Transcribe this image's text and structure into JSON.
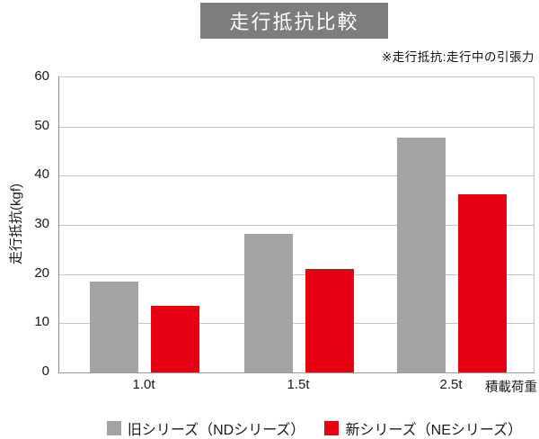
{
  "header": {
    "title": "走行抵抗比較",
    "note": "※走行抵抗:走行中の引張力"
  },
  "chart_data": {
    "type": "bar",
    "title": "走行抵抗比較",
    "categories": [
      "1.0t",
      "1.5t",
      "2.5t"
    ],
    "series": [
      {
        "id": "old-series",
        "name": "旧シリーズ（NDシリーズ）",
        "color": "#a4a4a4",
        "values": [
          18.5,
          28.2,
          47.8
        ]
      },
      {
        "id": "new-series",
        "name": "新シリーズ（NEシリーズ）",
        "color": "#e60012",
        "values": [
          13.5,
          21.1,
          36.3
        ]
      }
    ],
    "xlabel": "積載荷重",
    "ylabel": "走行抵抗(kgf)",
    "ylim": [
      0,
      60
    ],
    "yticks": [
      0,
      10,
      20,
      30,
      40,
      50,
      60
    ],
    "grid": true,
    "legend_position": "bottom"
  },
  "colors": {
    "title_background": "#7d7d7d",
    "title_text": "#ffffff",
    "bar_gray": "#a4a4a4",
    "bar_red": "#e60012",
    "gridline": "#c6c6c6",
    "axis_line": "#8a8a8a",
    "text": "#1a1a1a"
  }
}
